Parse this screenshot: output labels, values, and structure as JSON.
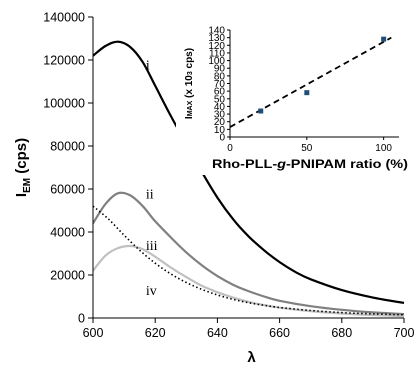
{
  "chart_data": [
    {
      "type": "line",
      "title": "",
      "xlabel": "λ",
      "ylabel": "I",
      "ylabel_sub": "EM",
      "ylabel_suffix": " (cps)",
      "xlim": [
        600,
        700
      ],
      "ylim": [
        0,
        140000
      ],
      "xticks": [
        600,
        620,
        640,
        660,
        680,
        700
      ],
      "yticks": [
        0,
        20000,
        40000,
        60000,
        80000,
        100000,
        120000,
        140000
      ],
      "xtick_labels": [
        "600",
        "620",
        "640",
        "660",
        "680",
        "700"
      ],
      "ytick_labels": [
        "0",
        "20000",
        "40000",
        "60000",
        "80000",
        "100000",
        "120000",
        "140000"
      ],
      "grid": false,
      "series": [
        {
          "name": "i",
          "color": "#000000",
          "dash": "solid",
          "x": [
            600,
            604,
            608,
            612,
            616,
            620,
            625,
            630,
            635,
            640,
            645,
            650,
            655,
            660,
            665,
            670,
            680,
            690,
            700
          ],
          "y": [
            122000,
            126500,
            128500,
            126000,
            119000,
            108000,
            94000,
            81000,
            68000,
            56000,
            46000,
            38000,
            31500,
            26000,
            21500,
            18000,
            13000,
            9500,
            7000
          ]
        },
        {
          "name": "ii",
          "color": "#808080",
          "dash": "solid",
          "x": [
            600,
            604,
            608,
            612,
            616,
            620,
            625,
            630,
            635,
            640,
            645,
            650,
            655,
            660,
            670,
            680,
            690,
            700
          ],
          "y": [
            44000,
            53000,
            58000,
            57000,
            52000,
            45000,
            37500,
            30500,
            24500,
            19500,
            15500,
            12500,
            10000,
            8000,
            5500,
            3800,
            2600,
            1800
          ]
        },
        {
          "name": "iii",
          "color": "#c0c0c0",
          "dash": "solid",
          "x": [
            600,
            604,
            608,
            612,
            616,
            620,
            625,
            630,
            635,
            640,
            645,
            650,
            655,
            660,
            670,
            680,
            690,
            700
          ],
          "y": [
            22000,
            29000,
            32500,
            33500,
            32000,
            28500,
            23500,
            19000,
            15000,
            12000,
            9500,
            7500,
            6000,
            4800,
            3200,
            2100,
            1400,
            900
          ]
        },
        {
          "name": "iv",
          "color": "#000000",
          "dash": "dotted",
          "x": [
            600,
            605,
            610,
            615,
            620,
            625,
            630,
            635,
            640,
            645,
            650,
            655,
            660,
            670,
            680,
            690,
            700
          ],
          "y": [
            52000,
            46000,
            38500,
            31500,
            25500,
            20500,
            16500,
            13300,
            10700,
            8700,
            7100,
            5900,
            4900,
            3500,
            2500,
            1900,
            1500
          ]
        }
      ],
      "curve_labels": [
        {
          "text": "i",
          "x": 617,
          "y": 118000
        },
        {
          "text": "ii",
          "x": 617,
          "y": 58000
        },
        {
          "text": "iii",
          "x": 617,
          "y": 34000
        },
        {
          "text": "iv",
          "x": 617,
          "y": 13000
        }
      ]
    },
    {
      "type": "scatter",
      "title": "",
      "xlabel_pre": "Rho-PLL-",
      "xlabel_italic": "g",
      "xlabel_post": "-PNIPAM ratio (%)",
      "ylabel_pre": "I",
      "ylabel_sub": "MAX",
      "ylabel_mid": " (x 10",
      "ylabel_sup": "3",
      "ylabel_post": " cps)",
      "xlim": [
        0,
        110
      ],
      "ylim": [
        0,
        140
      ],
      "xticks": [
        0,
        50,
        100
      ],
      "yticks": [
        0,
        10,
        20,
        30,
        40,
        50,
        60,
        70,
        80,
        90,
        100,
        110,
        120,
        130,
        140
      ],
      "xtick_labels": [
        "0",
        "50",
        "100"
      ],
      "ytick_labels": [
        "0",
        "10",
        "20",
        "30",
        "40",
        "50",
        "60",
        "70",
        "80",
        "90",
        "100",
        "110",
        "120",
        "130",
        "140"
      ],
      "grid": false,
      "points": [
        {
          "x": 20,
          "y": 34
        },
        {
          "x": 50,
          "y": 58
        },
        {
          "x": 100,
          "y": 128
        }
      ],
      "point_color": "#1f4e79",
      "trendline": {
        "x": [
          0,
          105
        ],
        "y": [
          13,
          130
        ],
        "dash": "dashed",
        "color": "#000000"
      }
    }
  ]
}
